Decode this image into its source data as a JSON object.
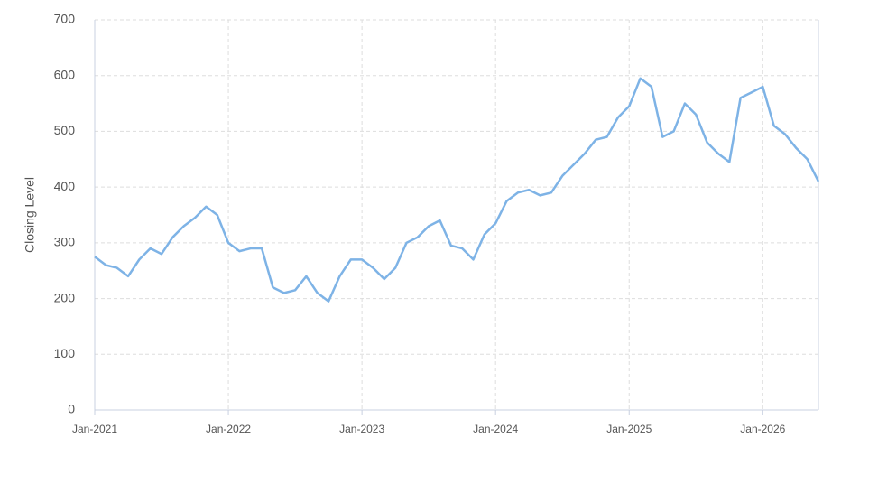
{
  "chart_data": {
    "type": "line",
    "y_label": "Closing Level",
    "x": [
      "2021-01",
      "2021-02",
      "2021-03",
      "2021-04",
      "2021-05",
      "2021-06",
      "2021-07",
      "2021-08",
      "2021-09",
      "2021-10",
      "2021-11",
      "2021-12",
      "2022-01",
      "2022-02",
      "2022-03",
      "2022-04",
      "2022-05",
      "2022-06",
      "2022-07",
      "2022-08",
      "2022-09",
      "2022-10",
      "2022-11",
      "2022-12",
      "2023-01",
      "2023-02",
      "2023-03",
      "2023-04",
      "2023-05",
      "2023-06",
      "2023-07",
      "2023-08",
      "2023-09",
      "2023-10",
      "2023-11",
      "2023-12",
      "2024-01",
      "2024-02",
      "2024-03",
      "2024-04",
      "2024-05",
      "2024-06",
      "2024-07",
      "2024-08",
      "2024-09",
      "2024-10",
      "2024-11",
      "2024-12",
      "2025-01",
      "2025-02",
      "2025-03",
      "2025-04",
      "2025-05",
      "2025-06",
      "2025-07",
      "2025-08",
      "2025-09",
      "2025-10",
      "2025-11",
      "2025-12",
      "2026-01",
      "2026-02",
      "2026-03",
      "2026-04",
      "2026-05",
      "2026-06"
    ],
    "series": [
      {
        "name": "Closing Level",
        "color": "#7eb3e6",
        "values": [
          275,
          260,
          255,
          240,
          270,
          290,
          280,
          310,
          330,
          345,
          365,
          350,
          300,
          285,
          290,
          290,
          220,
          210,
          215,
          240,
          210,
          195,
          240,
          270,
          270,
          255,
          235,
          255,
          300,
          310,
          330,
          340,
          295,
          290,
          270,
          315,
          335,
          375,
          390,
          395,
          385,
          390,
          420,
          440,
          460,
          485,
          490,
          525,
          545,
          595,
          580,
          490,
          500,
          550,
          530,
          480,
          460,
          445,
          560,
          570,
          580,
          510,
          495,
          470,
          450,
          410
        ]
      }
    ],
    "xlim": [
      "2021-01",
      "2026-06"
    ],
    "xticks": [
      {
        "value": "2021-01",
        "label": "Jan-2021"
      },
      {
        "value": "2022-01",
        "label": "Jan-2022"
      },
      {
        "value": "2023-01",
        "label": "Jan-2023"
      },
      {
        "value": "2024-01",
        "label": "Jan-2024"
      },
      {
        "value": "2025-01",
        "label": "Jan-2025"
      },
      {
        "value": "2026-01",
        "label": "Jan-2026"
      }
    ],
    "ylim": [
      0,
      700
    ],
    "yticks": [
      0,
      100,
      200,
      300,
      400,
      500,
      600,
      700
    ],
    "grid": true
  }
}
